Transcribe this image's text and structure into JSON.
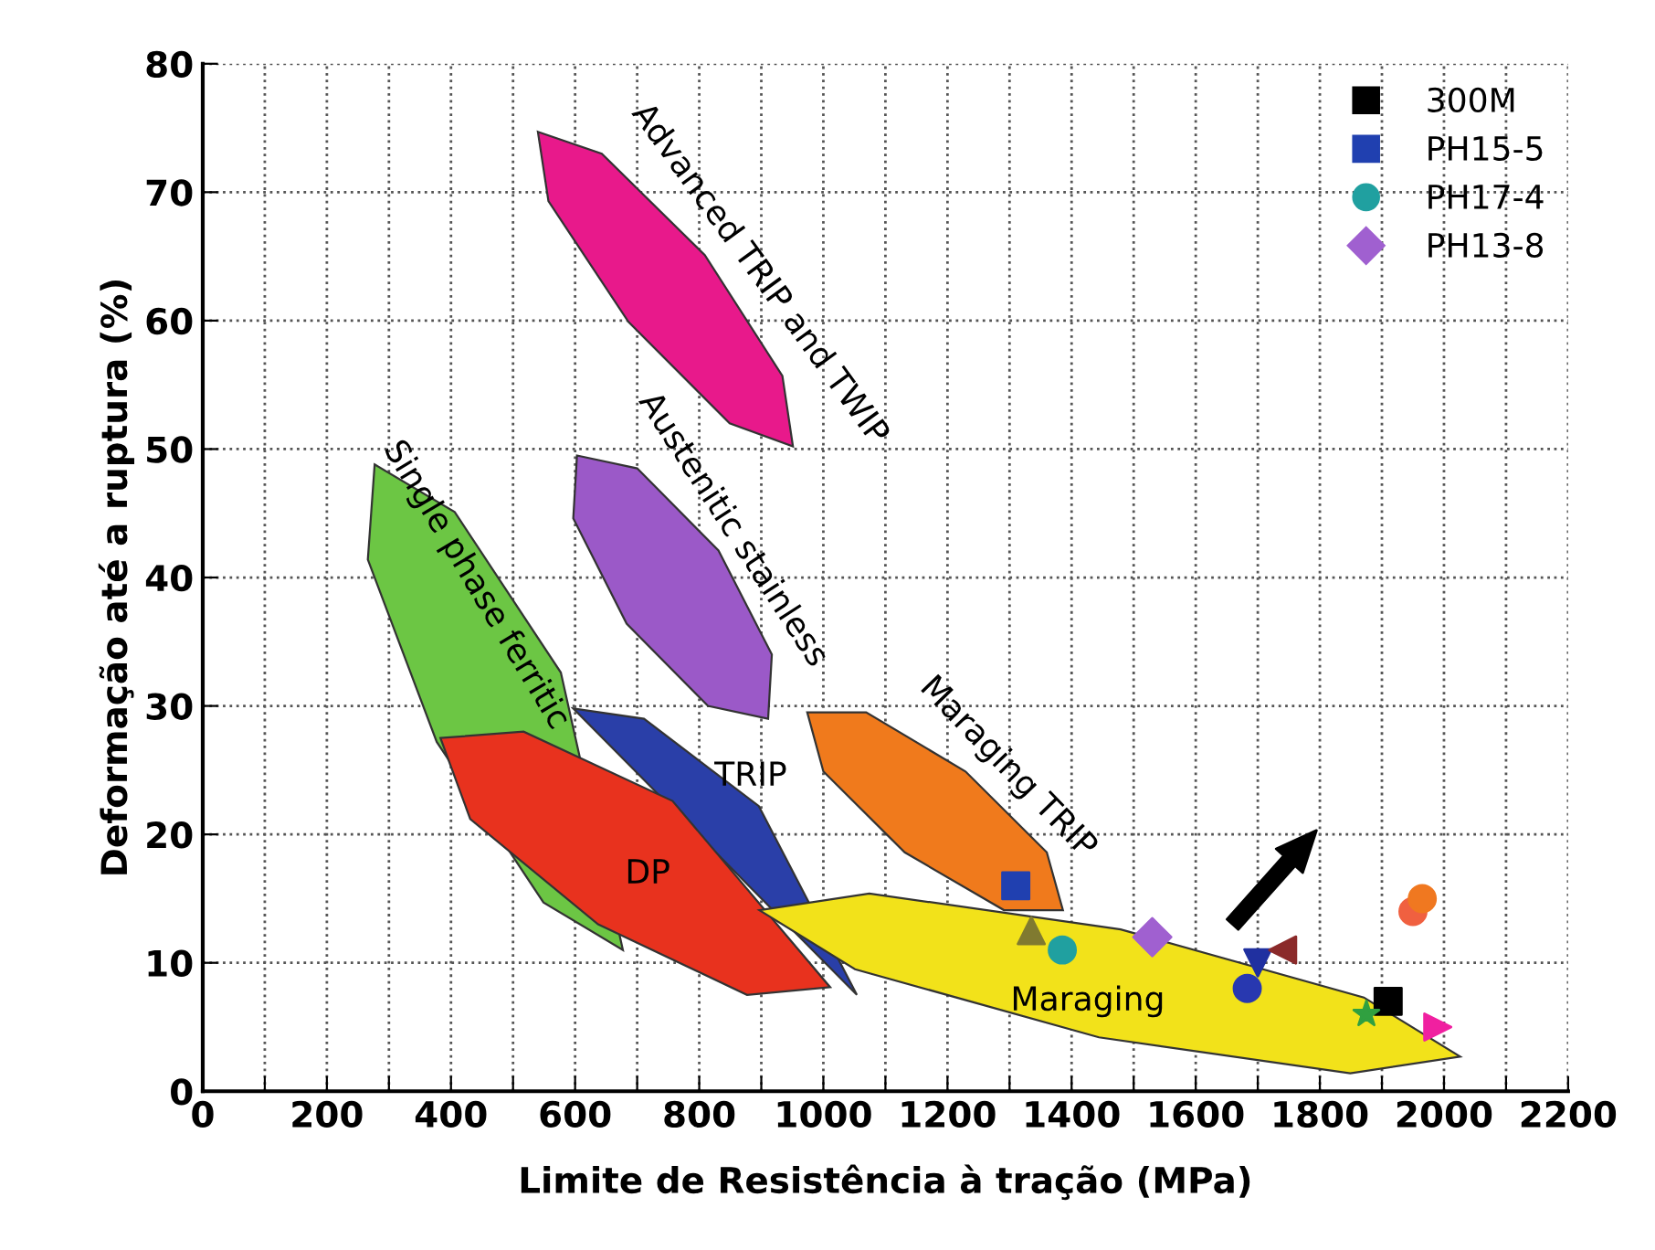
{
  "chart_data": {
    "type": "scatter",
    "xlabel": "Limite de Resistência à tração (MPa)",
    "ylabel": "Deformação até a ruptura (%)",
    "xlim": [
      0,
      2200
    ],
    "ylim": [
      0,
      80
    ],
    "xticks": [
      0,
      {
        "value": 100,
        "label": null
      },
      200,
      {
        "value": 300,
        "label": null
      },
      400,
      {
        "value": 500,
        "label": null
      },
      600,
      {
        "value": 700,
        "label": null
      },
      800,
      {
        "value": 900,
        "label": null
      },
      1000,
      {
        "value": 1100,
        "label": null
      },
      1200,
      {
        "value": 1300,
        "label": null
      },
      1400,
      {
        "value": 1500,
        "label": null
      },
      1600,
      {
        "value": 1700,
        "label": null
      },
      1800,
      {
        "value": 1900,
        "label": null
      },
      2000,
      {
        "value": 2100,
        "label": null
      },
      2200
    ],
    "yticks": [
      0,
      10,
      20,
      30,
      40,
      50,
      60,
      70,
      80
    ],
    "grid": true,
    "line_style": "dotted",
    "legend": "top right",
    "series": [
      {
        "type": "area",
        "color": "#e8198b",
        "x": [
          540,
          643,
          809,
          934,
          951,
          849,
          686,
          557
        ],
        "values": [
          74.7,
          73.0,
          65.1,
          55.7,
          50.2,
          52.0,
          59.9,
          69.3
        ]
      },
      {
        "type": "area",
        "color": "#9b59c8",
        "x": [
          603,
          700,
          831,
          917,
          911,
          814,
          683,
          597
        ],
        "values": [
          49.5,
          48.5,
          42.1,
          34.0,
          29.0,
          30.0,
          36.4,
          44.6
        ]
      },
      {
        "type": "area",
        "color": "#6cc644",
        "x": [
          277,
          406,
          577,
          677,
          549,
          377,
          266
        ],
        "values": [
          48.8,
          45.1,
          32.6,
          11.0,
          14.7,
          27.2,
          41.4
        ]
      },
      {
        "type": "area",
        "color": "#2a3fa8",
        "x": [
          597,
          711,
          896,
          1054
        ],
        "values": [
          29.8,
          29.0,
          22.2,
          7.5
        ]
      },
      {
        "type": "area",
        "color": "#e8321e",
        "x": [
          383,
          517,
          757,
          1011,
          877,
          637,
          431
        ],
        "values": [
          27.5,
          28.0,
          22.6,
          8.1,
          7.5,
          13.0,
          21.2
        ]
      },
      {
        "type": "area",
        "color": "#f07a1c",
        "x": [
          974,
          1069,
          1229,
          1360,
          1386,
          1291,
          1131,
          1000
        ],
        "values": [
          29.5,
          29.5,
          24.9,
          18.6,
          14.1,
          14.1,
          18.6,
          24.9
        ]
      },
      {
        "type": "area",
        "color": "#f2e21a",
        "x": [
          897,
          1074,
          1479,
          1871,
          2026,
          1849,
          1444,
          1051
        ],
        "values": [
          14.1,
          15.4,
          12.6,
          7.3,
          2.7,
          1.4,
          4.2,
          9.5
        ]
      },
      {
        "name": "300M",
        "color": "#000000",
        "marker": "square",
        "x": [
          1910
        ],
        "values": [
          7
        ]
      },
      {
        "color": "#f06040",
        "marker": "circle",
        "x": [
          1950
        ],
        "values": [
          14
        ]
      },
      {
        "name": "PH15-5",
        "color": "#2040b0",
        "marker": "square",
        "x": [
          1310
        ],
        "values": [
          16
        ]
      },
      {
        "name": "PH17-4",
        "color": "#20a0a0",
        "marker": "circle",
        "x": [
          1385
        ],
        "values": [
          11
        ]
      },
      {
        "name": "PH13-8",
        "color": "#a060d0",
        "marker": "diamond",
        "x": [
          1530
        ],
        "values": [
          12
        ]
      },
      {
        "color": "#807a30",
        "marker": "triangle",
        "x": [
          1335
        ],
        "values": [
          12.5
        ]
      },
      {
        "color": "#2030a0",
        "marker": "triangle-down",
        "x": [
          1700
        ],
        "values": [
          10
        ]
      },
      {
        "color": "#8b2a2a",
        "marker": "triangle-left",
        "x": [
          1740
        ],
        "values": [
          11
        ]
      },
      {
        "color": "#f020a0",
        "marker": "triangle-right",
        "x": [
          1990
        ],
        "values": [
          5
        ]
      },
      {
        "color": "#30a040",
        "marker": "star",
        "x": [
          1875
        ],
        "values": [
          6
        ]
      },
      {
        "color": "#2838b0",
        "marker": "circle",
        "x": [
          1683
        ],
        "values": [
          8
        ]
      },
      {
        "color": "#f07820",
        "marker": "circle",
        "x": [
          1965
        ],
        "values": [
          15
        ]
      }
    ],
    "annotations": [
      "Advanced TRIP and TWIP",
      "Austenitic stainless",
      "Single phase ferritic",
      "TRIP",
      "DP",
      "Maraging TRIP",
      "Maraging"
    ]
  }
}
